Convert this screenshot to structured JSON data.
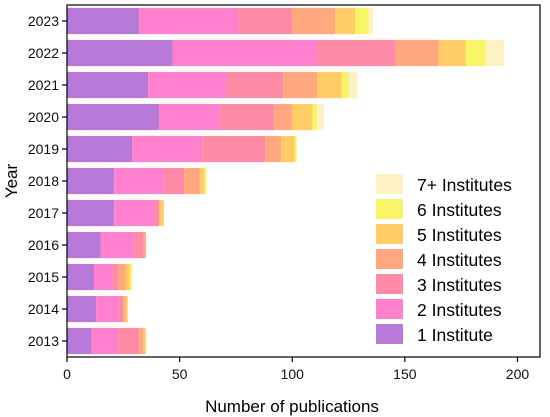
{
  "chart_data": {
    "type": "bar",
    "orientation": "horizontal",
    "stacked": true,
    "title": "",
    "xlabel": "Number of publications",
    "ylabel": "Year",
    "xlim": [
      0,
      210
    ],
    "xticks": [
      0,
      50,
      100,
      150,
      200
    ],
    "grid": false,
    "legend_position": "bottom-right",
    "categories": [
      "2013",
      "2014",
      "2015",
      "2016",
      "2017",
      "2018",
      "2019",
      "2020",
      "2021",
      "2022",
      "2023"
    ],
    "series": [
      {
        "name": "1 Institute",
        "color": "#b87ad8",
        "values": [
          11,
          13,
          12,
          15,
          21,
          21,
          29,
          41,
          36,
          47,
          32
        ]
      },
      {
        "name": "2 Institutes",
        "color": "#ff80cc",
        "values": [
          12,
          10,
          8,
          15,
          18,
          22,
          31,
          27,
          35,
          64,
          44
        ]
      },
      {
        "name": "3 Institutes",
        "color": "#ff8aa6",
        "values": [
          9,
          2,
          3,
          4,
          2,
          9,
          28,
          24,
          25,
          35,
          24
        ]
      },
      {
        "name": "4 Institutes",
        "color": "#ffa880",
        "values": [
          2,
          1,
          3,
          1,
          0,
          7,
          7,
          8,
          15,
          19,
          19
        ]
      },
      {
        "name": "5 Institutes",
        "color": "#ffcc66",
        "values": [
          1,
          1,
          2,
          0,
          2,
          2,
          6,
          9,
          11,
          12,
          9
        ]
      },
      {
        "name": "6 Institutes",
        "color": "#f7f466",
        "values": [
          0,
          0,
          1,
          0,
          0,
          1,
          1,
          2,
          3,
          9,
          6
        ]
      },
      {
        "name": "7+ Institutes",
        "color": "#fbf1c3",
        "values": [
          0,
          0,
          0,
          0,
          0,
          0,
          0,
          3,
          4,
          8,
          2
        ]
      }
    ]
  }
}
